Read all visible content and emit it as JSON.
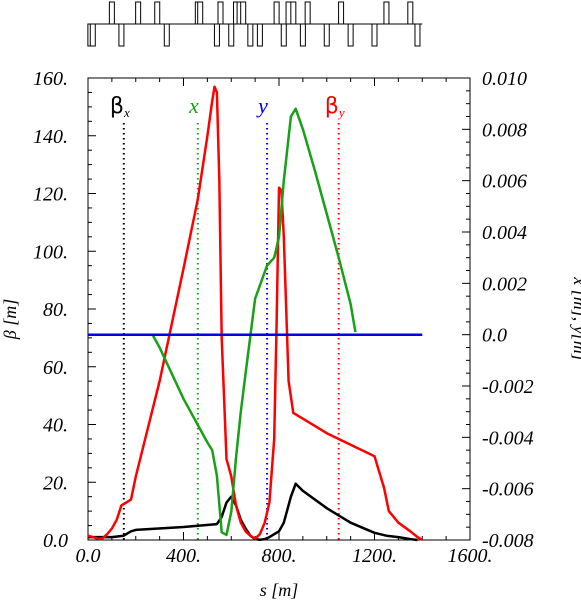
{
  "chart_data": {
    "type": "line",
    "xlabel": "s [m]",
    "ylabel_left": "β [m]",
    "ylabel_right": "x [m],  y[m]",
    "xlim": [
      0,
      1600
    ],
    "ylim_left": [
      0,
      160
    ],
    "ylim_right": [
      -0.008,
      0.01
    ],
    "x_ticks": [
      "0.0",
      "400.",
      "800.",
      "1200.",
      "1600."
    ],
    "y_left_ticks": [
      "0.0",
      "20.",
      "40.",
      "60.",
      "80.",
      "100.",
      "120.",
      "140.",
      "160."
    ],
    "y_right_ticks": [
      "-0.008",
      "-0.006",
      "-0.004",
      "-0.002",
      "0.0",
      "0.002",
      "0.004",
      "0.006",
      "0.008",
      "0.010"
    ],
    "grid": false,
    "series": [
      {
        "name": "βx",
        "name_main": "β",
        "name_sub": "x",
        "axis": "left",
        "color": "#000000",
        "x": [
          0,
          100,
          150,
          160,
          180,
          200,
          400,
          540,
          560,
          580,
          600,
          620,
          640,
          660,
          680,
          700,
          720,
          740,
          760,
          780,
          800,
          820,
          850,
          870,
          900,
          1000,
          1100,
          1200,
          1250,
          1300,
          1350,
          1380
        ],
        "y": [
          1,
          1,
          1.5,
          2,
          3,
          3.5,
          4.5,
          5.5,
          8,
          13,
          15,
          12,
          7,
          4,
          1.5,
          0.3,
          0.1,
          0.3,
          1,
          2,
          3,
          6,
          15,
          19.5,
          17,
          11,
          6,
          2.5,
          1.5,
          1,
          0.3,
          0
        ]
      },
      {
        "name": "βy",
        "name_main": "β",
        "name_sub": "y",
        "axis": "left",
        "color": "#ff0000",
        "x": [
          0,
          20,
          40,
          60,
          80,
          100,
          120,
          140,
          160,
          180,
          200,
          300,
          400,
          460,
          500,
          520,
          530,
          540,
          550,
          560,
          580,
          600,
          620,
          640,
          660,
          680,
          700,
          720,
          740,
          760,
          780,
          790,
          800,
          810,
          820,
          840,
          860,
          900,
          1000,
          1100,
          1200,
          1240,
          1260,
          1300,
          1350,
          1380,
          1400
        ],
        "y": [
          1.5,
          1,
          0.5,
          0.5,
          2,
          4,
          7,
          12,
          13,
          14,
          22,
          55,
          94,
          118,
          140,
          152,
          157,
          155,
          125,
          70,
          28,
          22,
          12,
          6,
          3,
          1.5,
          0.5,
          2,
          6,
          13,
          35,
          75,
          122,
          121,
          105,
          55,
          44,
          42,
          37,
          33,
          29,
          18,
          10,
          6,
          3,
          1,
          0
        ]
      },
      {
        "name": "x",
        "axis": "right",
        "color": "#18a018",
        "x": [
          270,
          300,
          400,
          500,
          520,
          540,
          560,
          580,
          600,
          620,
          640,
          660,
          700,
          750,
          780,
          800,
          820,
          850,
          870,
          900,
          950,
          1000,
          1050,
          1100,
          1120
        ],
        "y": [
          0.0,
          -0.0005,
          -0.0025,
          -0.0042,
          -0.0045,
          -0.0055,
          -0.0077,
          -0.0078,
          -0.0069,
          -0.0048,
          -0.003,
          -0.0015,
          0.0014,
          0.0027,
          0.003,
          0.0038,
          0.006,
          0.0085,
          0.0088,
          0.008,
          0.0064,
          0.0047,
          0.003,
          0.0012,
          0.0001
        ]
      },
      {
        "name": "y",
        "axis": "right",
        "color": "#0000ee",
        "x": [
          0,
          1400
        ],
        "y": [
          0.0,
          0.0
        ]
      }
    ],
    "vertical_markers": [
      {
        "label_main": "β",
        "label_sub": "x",
        "x": 150,
        "color": "#000000"
      },
      {
        "label_main": "x",
        "label_sub": "",
        "x": 460,
        "color": "#18a018"
      },
      {
        "label_main": "y",
        "label_sub": "",
        "x": 750,
        "color": "#0000ee"
      },
      {
        "label_main": "β",
        "label_sub": "y",
        "x": 1050,
        "color": "#ff0000"
      }
    ],
    "lattice_elements": [
      {
        "s": 10,
        "side": "down"
      },
      {
        "s": 20,
        "side": "down"
      },
      {
        "s": 100,
        "side": "up"
      },
      {
        "s": 140,
        "side": "down"
      },
      {
        "s": 210,
        "side": "up"
      },
      {
        "s": 290,
        "side": "up"
      },
      {
        "s": 330,
        "side": "down"
      },
      {
        "s": 460,
        "side": "up"
      },
      {
        "s": 470,
        "side": "up"
      },
      {
        "s": 540,
        "side": "down"
      },
      {
        "s": 555,
        "side": "up"
      },
      {
        "s": 600,
        "side": "down"
      },
      {
        "s": 620,
        "side": "up"
      },
      {
        "s": 635,
        "side": "up"
      },
      {
        "s": 650,
        "side": "up"
      },
      {
        "s": 680,
        "side": "down"
      },
      {
        "s": 720,
        "side": "down"
      },
      {
        "s": 790,
        "side": "up"
      },
      {
        "s": 820,
        "side": "down"
      },
      {
        "s": 840,
        "side": "up"
      },
      {
        "s": 860,
        "side": "up"
      },
      {
        "s": 900,
        "side": "down"
      },
      {
        "s": 920,
        "side": "up"
      },
      {
        "s": 1000,
        "side": "down"
      },
      {
        "s": 1060,
        "side": "up"
      },
      {
        "s": 1100,
        "side": "down"
      },
      {
        "s": 1200,
        "side": "down"
      },
      {
        "s": 1250,
        "side": "up"
      },
      {
        "s": 1350,
        "side": "up"
      },
      {
        "s": 1380,
        "side": "down"
      }
    ]
  }
}
